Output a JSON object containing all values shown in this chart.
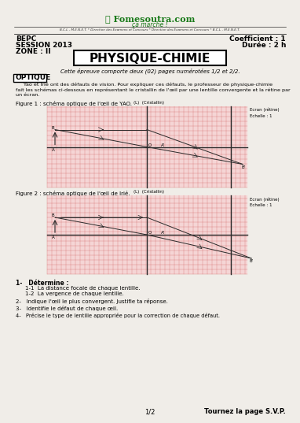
{
  "title_site": "Fomesoutra.com",
  "subtitle_site": "ça marche !",
  "header_line": "B.C.L - M.E.N.E.T. * Direction des Examens et Concours * Direction des Examens et Concours * B.C.L - M.E.N.E.T.",
  "left_header": [
    "BEPC",
    "SESSION 2013",
    "ZONE : II"
  ],
  "right_header": [
    "Coefficient : 1",
    "Durée : 2 h"
  ],
  "main_title": "PHYSIQUE-CHIMIE",
  "intro_italic": "Cette épreuve comporte deux (02) pages numérotées 1/2 et 2/2.",
  "section": "OPTIQUE",
  "para_lines": [
    "     Yao et Irié ont des défauts de vision. Pour expliquer ces défauts, le professeur de physique-chimie",
    "fait les schémas ci-dessous en représentant le cristallin de l'œil par une lentille convergente et la rétine par",
    "un écran."
  ],
  "fig1_label": "Figure 1 : schéma optique de l'œil de YAO.",
  "fig2_label": "Figure 2 : schéma optique de l'œil de Irié.",
  "ecran_label": "Ecran (rétine)",
  "echelle_label": "Echelle : 1",
  "cristallin_label": "(L)  (Cristallin)",
  "q1": "1-   Détermine :",
  "q11": "1-1  La distance focale de chaque lentille.",
  "q12": "1-2  La vergence de chaque lentille.",
  "q2": "2-   Indique l'œil le plus convergent. Justifie ta réponse.",
  "q3": "3-   Identifie le défaut de chaque œil.",
  "q4": "4-   Précise le type de lentille appropriée pour la correction de chaque défaut.",
  "footer_left": "1/2",
  "footer_right": "Tournez la page S.V.P.",
  "bg_color": "#f0ede8",
  "grid_bg": "#f5d5d5",
  "grid_color": "#cc5555",
  "dark_line": "#2a2a2a"
}
